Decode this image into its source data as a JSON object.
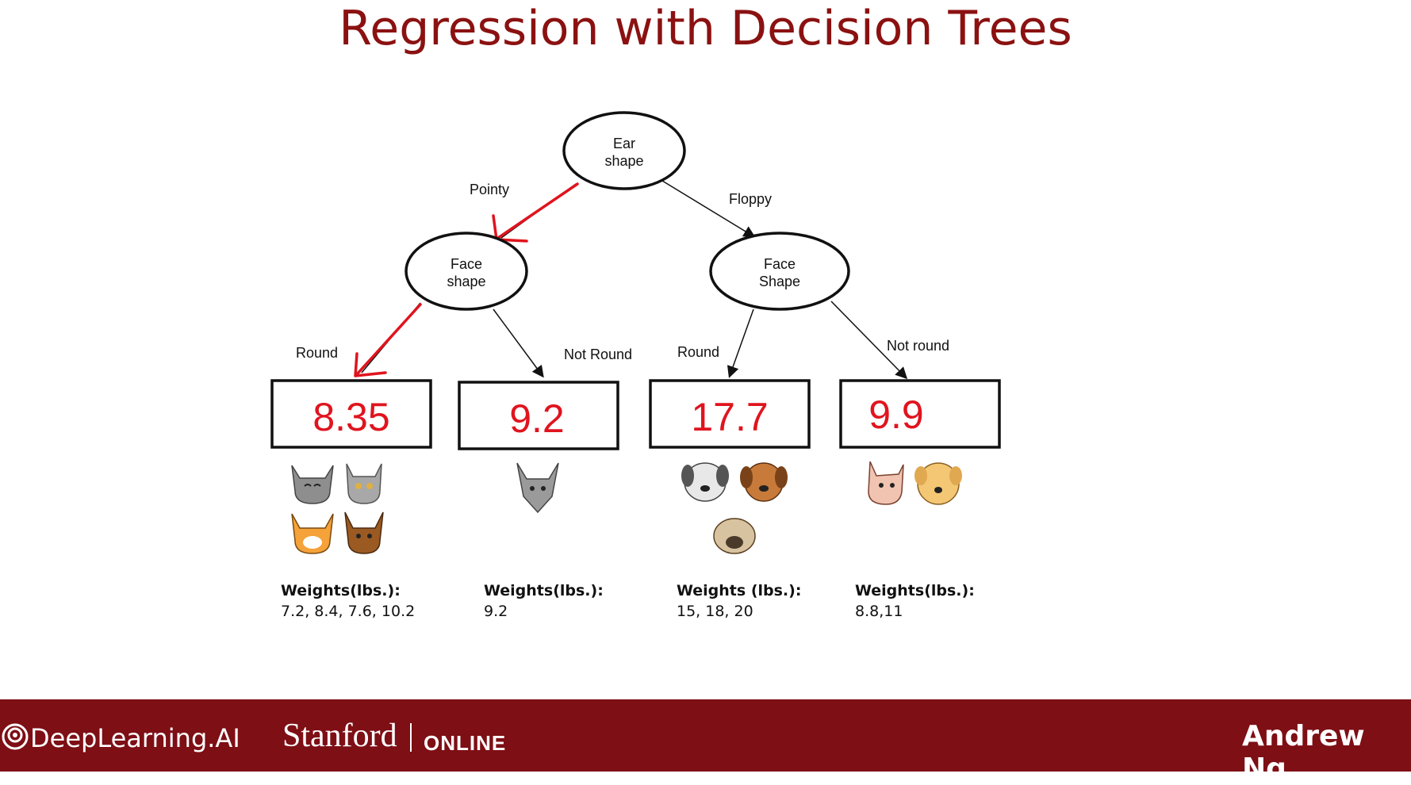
{
  "title": "Regression with Decision Trees",
  "root": {
    "line1": "Ear",
    "line2": "shape"
  },
  "left_node": {
    "line1": "Face",
    "line2": "shape"
  },
  "right_node": {
    "line1": "Face",
    "line2": "Shape"
  },
  "edges": {
    "pointy": "Pointy",
    "floppy": "Floppy",
    "left_round": "Round",
    "left_not_round": "Not Round",
    "right_round": "Round",
    "right_not_round": "Not round"
  },
  "leaves": [
    {
      "prediction": "8.35",
      "weights_label": "Weights(lbs.):",
      "weights": "7.2, 8.4, 7.6, 10.2",
      "animals": [
        "gray cat",
        "gray cat",
        "orange cat",
        "brown cat"
      ]
    },
    {
      "prediction": "9.2",
      "weights_label": "Weights(lbs.):",
      "weights": "9.2",
      "animals": [
        "gray cat"
      ]
    },
    {
      "prediction": "17.7",
      "weights_label": "Weights (lbs.):",
      "weights": "15,  18, 20",
      "animals": [
        "white dog",
        "brown dog",
        "pug dog"
      ]
    },
    {
      "prediction": "9.9",
      "weights_label": "Weights(lbs.):",
      "weights": "8.8,11",
      "animals": [
        "pink cat",
        "tan dog"
      ]
    }
  ],
  "colors": {
    "title": "#8b1111",
    "highlight": "#e0141e",
    "footer": "#7d0f15"
  },
  "footer": {
    "deeplearning": "DeepLearning.AI",
    "stanford": "Stanford",
    "online": "ONLINE",
    "instructor": "Andrew Ng"
  }
}
